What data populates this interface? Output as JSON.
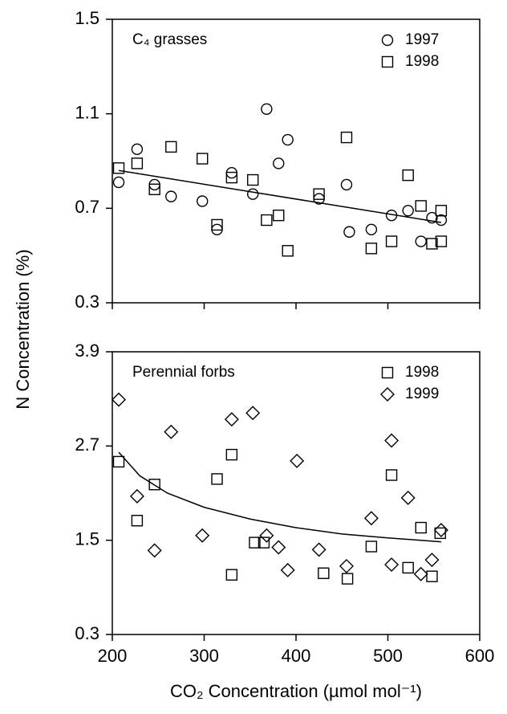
{
  "ylabel": "N Concentration (%)",
  "xlabel": "CO₂ Concentration (µmol mol⁻¹)",
  "chart_data": [
    {
      "type": "scatter",
      "title": "C₄ grasses",
      "xlim": [
        200,
        600
      ],
      "xticks": [
        200,
        300,
        400,
        500,
        600
      ],
      "ylim": [
        0.3,
        1.5
      ],
      "yticks": [
        0.3,
        0.7,
        1.1,
        1.5
      ],
      "legend": "upper right",
      "series": [
        {
          "name": "1997",
          "marker": "circle",
          "color": "#000000",
          "x": [
            207,
            227,
            246,
            264,
            298,
            314,
            330,
            353,
            368,
            381,
            391,
            425,
            455,
            458,
            482,
            504,
            522,
            536,
            548,
            558
          ],
          "values": [
            0.81,
            0.95,
            0.8,
            0.75,
            0.73,
            0.61,
            0.85,
            0.76,
            1.12,
            0.89,
            0.99,
            0.74,
            0.8,
            0.6,
            0.61,
            0.67,
            0.69,
            0.56,
            0.66,
            0.65
          ]
        },
        {
          "name": "1998",
          "marker": "square",
          "color": "#000000",
          "x": [
            207,
            227,
            246,
            264,
            298,
            314,
            330,
            353,
            368,
            381,
            391,
            425,
            455,
            482,
            504,
            522,
            536,
            548,
            558,
            558
          ],
          "values": [
            0.87,
            0.89,
            0.78,
            0.96,
            0.91,
            0.63,
            0.83,
            0.82,
            0.65,
            0.67,
            0.52,
            0.76,
            1.0,
            0.53,
            0.56,
            0.84,
            0.71,
            0.55,
            0.56,
            0.69
          ]
        }
      ],
      "trend_line": {
        "x": [
          207,
          558
        ],
        "values": [
          0.86,
          0.64
        ]
      }
    },
    {
      "type": "scatter",
      "title": "Perennial forbs",
      "xlim": [
        200,
        600
      ],
      "xticks": [
        200,
        300,
        400,
        500,
        600
      ],
      "ylim": [
        0.3,
        3.9
      ],
      "yticks": [
        0.3,
        1.5,
        2.7,
        3.9
      ],
      "legend": "upper right",
      "series": [
        {
          "name": "1998",
          "marker": "square",
          "color": "#000000",
          "x": [
            207,
            227,
            246,
            314,
            330,
            330,
            355,
            365,
            430,
            456,
            482,
            504,
            522,
            536,
            548,
            557
          ],
          "values": [
            2.5,
            1.75,
            2.21,
            2.28,
            2.59,
            1.06,
            1.47,
            1.47,
            1.08,
            1.01,
            1.42,
            2.33,
            1.15,
            1.66,
            1.04,
            1.59
          ]
        },
        {
          "name": "1999",
          "marker": "diamond",
          "color": "#000000",
          "x": [
            207,
            227,
            246,
            264,
            298,
            330,
            353,
            368,
            381,
            391,
            401,
            425,
            455,
            482,
            504,
            522,
            504,
            536,
            548,
            558
          ],
          "values": [
            3.29,
            2.06,
            1.37,
            2.88,
            1.56,
            3.04,
            3.12,
            1.56,
            1.41,
            1.12,
            2.51,
            1.38,
            1.17,
            1.78,
            2.77,
            2.04,
            1.19,
            1.07,
            1.25,
            1.63
          ]
        }
      ],
      "trend_line": {
        "x": [
          207,
          230,
          260,
          300,
          350,
          400,
          450,
          500,
          558
        ],
        "values": [
          2.62,
          2.32,
          2.1,
          1.92,
          1.77,
          1.66,
          1.58,
          1.53,
          1.48
        ]
      }
    }
  ]
}
